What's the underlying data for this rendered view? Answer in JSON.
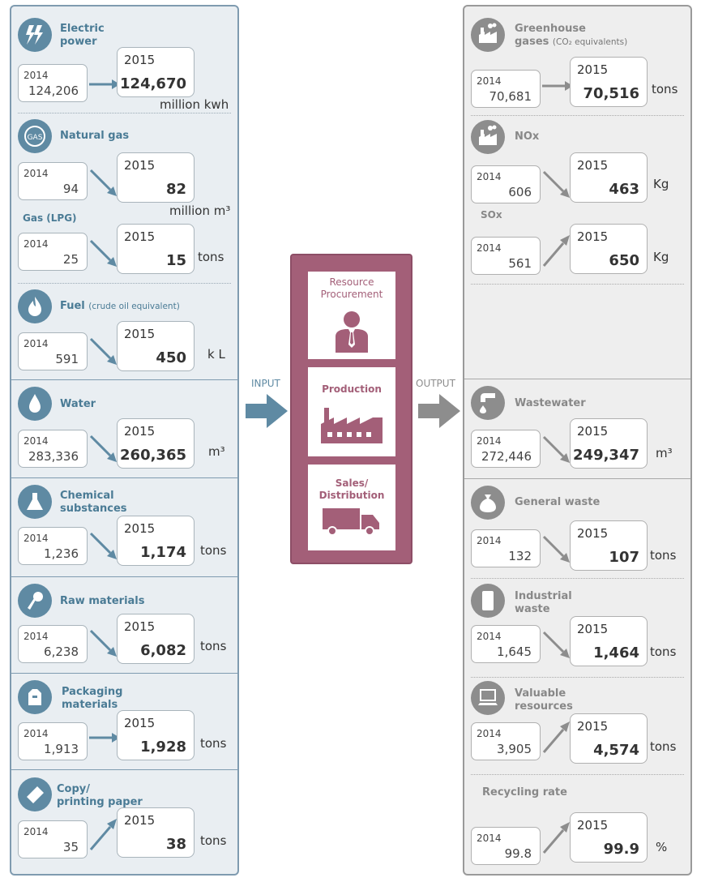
{
  "input": {
    "label": "INPUT",
    "items": [
      {
        "title": "Electric",
        "title2": "power",
        "y2014": "2014",
        "v2014": "124,206",
        "y2015": "2015",
        "v2015": "124,670",
        "unit": "million kwh",
        "trend": "flat"
      },
      {
        "title": "Natural gas",
        "y2014": "2014",
        "v2014": "94",
        "y2015": "2015",
        "v2015": "82",
        "unit": "million m³",
        "trend": "down",
        "icon_text": "GAS"
      },
      {
        "title": "Gas (LPG)",
        "y2014": "2014",
        "v2014": "25",
        "y2015": "2015",
        "v2015": "15",
        "unit": "tons",
        "trend": "down"
      },
      {
        "title": "Fuel",
        "title_small": "(crude oil equivalent)",
        "y2014": "2014",
        "v2014": "591",
        "y2015": "2015",
        "v2015": "450",
        "unit": "k L",
        "trend": "down"
      },
      {
        "title": "Water",
        "y2014": "2014",
        "v2014": "283,336",
        "y2015": "2015",
        "v2015": "260,365",
        "unit": "m³",
        "trend": "down"
      },
      {
        "title": "Chemical",
        "title2": "substances",
        "y2014": "2014",
        "v2014": "1,236",
        "y2015": "2015",
        "v2015": "1,174",
        "unit": "tons",
        "trend": "down"
      },
      {
        "title": "Raw materials",
        "y2014": "2014",
        "v2014": "6,238",
        "y2015": "2015",
        "v2015": "6,082",
        "unit": "tons",
        "trend": "down"
      },
      {
        "title": "Packaging",
        "title2": "materials",
        "y2014": "2014",
        "v2014": "1,913",
        "y2015": "2015",
        "v2015": "1,928",
        "unit": "tons",
        "trend": "flat"
      },
      {
        "title": "Copy/",
        "title2": "printing paper",
        "y2014": "2014",
        "v2014": "35",
        "y2015": "2015",
        "v2015": "38",
        "unit": "tons",
        "trend": "up"
      }
    ]
  },
  "process": {
    "stages": [
      "Resource Procurement",
      "Production",
      "Sales/ Distribution"
    ],
    "stage1_line1": "Resource",
    "stage1_line2": "Procurement",
    "stage2": "Production",
    "stage3_line1": "Sales/",
    "stage3_line2": "Distribution",
    "color": "#a35f78"
  },
  "output": {
    "label": "OUTPUT",
    "items": [
      {
        "title": "Greenhouse",
        "title2": "gases",
        "title_small": "(CO₂ equivalents)",
        "y2014": "2014",
        "v2014": "70,681",
        "y2015": "2015",
        "v2015": "70,516",
        "unit": "tons",
        "trend": "flat"
      },
      {
        "title": "NOx",
        "y2014": "2014",
        "v2014": "606",
        "y2015": "2015",
        "v2015": "463",
        "unit": "Kg",
        "trend": "down"
      },
      {
        "title": "SOx",
        "y2014": "2014",
        "v2014": "561",
        "y2015": "2015",
        "v2015": "650",
        "unit": "Kg",
        "trend": "up"
      },
      {
        "title": "Wastewater",
        "y2014": "2014",
        "v2014": "272,446",
        "y2015": "2015",
        "v2015": "249,347",
        "unit": "m³",
        "trend": "down"
      },
      {
        "title": "General waste",
        "y2014": "2014",
        "v2014": "132",
        "y2015": "2015",
        "v2015": "107",
        "unit": "tons",
        "trend": "down"
      },
      {
        "title": "Industrial",
        "title2": "waste",
        "y2014": "2014",
        "v2014": "1,645",
        "y2015": "2015",
        "v2015": "1,464",
        "unit": "tons",
        "trend": "down"
      },
      {
        "title": "Valuable",
        "title2": "resources",
        "y2014": "2014",
        "v2014": "3,905",
        "y2015": "2015",
        "v2015": "4,574",
        "unit": "tons",
        "trend": "up"
      },
      {
        "title": "Recycling rate",
        "y2014": "2014",
        "v2014": "99.8",
        "y2015": "2015",
        "v2015": "99.9",
        "unit": "%",
        "trend": "up"
      }
    ]
  },
  "colors": {
    "input": "#5f8aa3",
    "output": "#8d8d8d",
    "process": "#a35f78"
  }
}
